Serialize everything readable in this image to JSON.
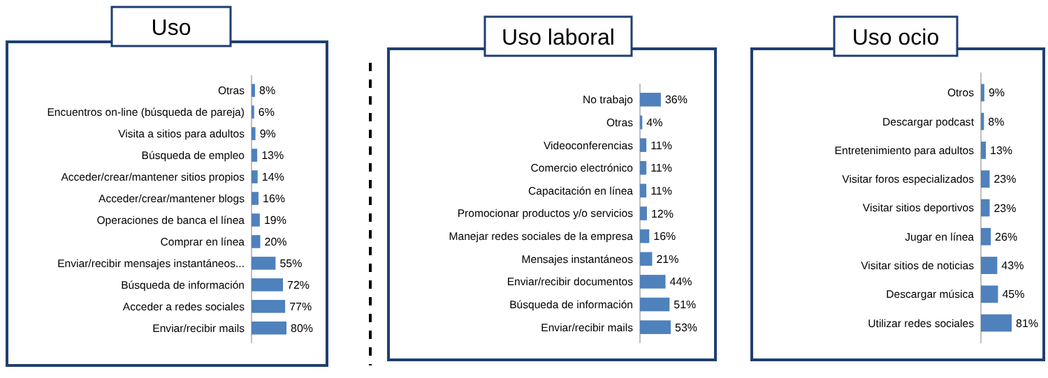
{
  "chart_data": [
    {
      "type": "bar",
      "orientation": "horizontal",
      "title": "Uso",
      "color": "#4f81bd",
      "categories": [
        "Otras",
        "Encuentros on-line (búsqueda de pareja)",
        "Visita a sitios para adultos",
        "Búsqueda de empleo",
        "Acceder/crear/mantener sitios propios",
        "Acceder/crear/mantener blogs",
        "Operaciones de banca el línea",
        "Comprar en línea",
        "Enviar/recibir mensajes instantáneos...",
        "Búsqueda de información",
        "Acceder a redes sociales",
        "Enviar/recibir mails"
      ],
      "values": [
        8,
        6,
        9,
        13,
        14,
        16,
        19,
        20,
        55,
        72,
        77,
        80
      ],
      "value_labels": [
        "8%",
        "6%",
        "9%",
        "13%",
        "14%",
        "16%",
        "19%",
        "20%",
        "55%",
        "72%",
        "77%",
        "80%"
      ]
    },
    {
      "type": "bar",
      "orientation": "horizontal",
      "title": "Uso laboral",
      "color": "#4f81bd",
      "categories": [
        "No trabajo",
        "Otras",
        "Videoconferencias",
        "Comercio electrónico",
        "Capacitación en línea",
        "Promocionar productos y/o servicios",
        "Manejar redes sociales de la empresa",
        "Mensajes instantáneos",
        "Enviar/recibir documentos",
        "Búsqueda de información",
        "Enviar/recibir mails"
      ],
      "values": [
        36,
        4,
        11,
        11,
        11,
        12,
        16,
        21,
        44,
        51,
        53
      ],
      "value_labels": [
        "36%",
        "4%",
        "11%",
        "11%",
        "11%",
        "12%",
        "16%",
        "21%",
        "44%",
        "51%",
        "53%"
      ]
    },
    {
      "type": "bar",
      "orientation": "horizontal",
      "title": "Uso ocio",
      "color": "#4f81bd",
      "categories": [
        "Otros",
        "Descargar podcast",
        "Entretenimiento para adultos",
        "Visitar foros especializados",
        "Visitar sitios deportivos",
        "Jugar en línea",
        "Visitar sitios de noticias",
        "Descargar música",
        "Utilizar redes sociales"
      ],
      "values": [
        9,
        8,
        13,
        23,
        23,
        26,
        43,
        45,
        81
      ],
      "value_labels": [
        "9%",
        "8%",
        "13%",
        "23%",
        "23%",
        "26%",
        "43%",
        "45%",
        "81%"
      ]
    }
  ]
}
